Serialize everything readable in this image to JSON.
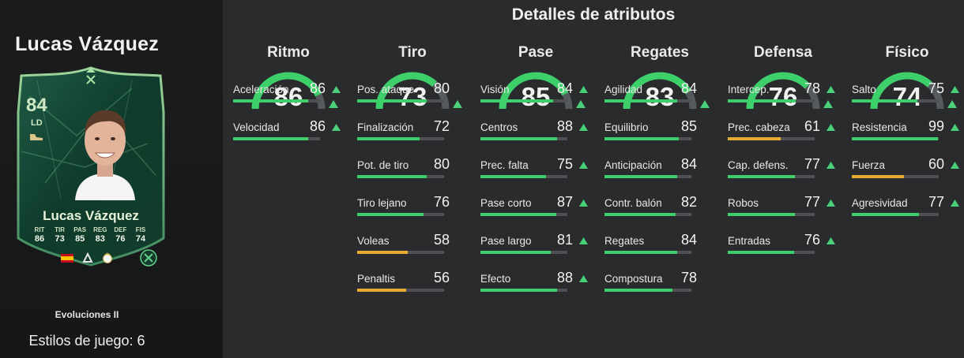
{
  "player": {
    "name": "Lucas Vázquez",
    "card_name": "Lucas Vázquez",
    "rating": "84",
    "position": "LD",
    "card_stats": [
      {
        "label": "RIT",
        "value": "86"
      },
      {
        "label": "TIR",
        "value": "73"
      },
      {
        "label": "PAS",
        "value": "85"
      },
      {
        "label": "REG",
        "value": "83"
      },
      {
        "label": "DEF",
        "value": "76"
      },
      {
        "label": "FIS",
        "value": "74"
      }
    ],
    "card_type": "Evoluciones II",
    "playstyles": "Estilos de juego: 6"
  },
  "title": "Detalles de atributos",
  "colors": {
    "green": "#3ccf6a",
    "yellow": "#e6ad2e",
    "gauge_track": "#575a5d",
    "up_arrow": "#4bd07a"
  },
  "categories": [
    {
      "name": "Ritmo",
      "value": 86,
      "attributes": [
        {
          "name": "Aceleración",
          "value": 86,
          "up": true
        },
        {
          "name": "Velocidad",
          "value": 86,
          "up": true
        }
      ]
    },
    {
      "name": "Tiro",
      "value": 73,
      "attributes": [
        {
          "name": "Pos. ataque",
          "value": 80,
          "up": false
        },
        {
          "name": "Finalización",
          "value": 72,
          "up": false
        },
        {
          "name": "Pot. de tiro",
          "value": 80,
          "up": false
        },
        {
          "name": "Tiro lejano",
          "value": 76,
          "up": false
        },
        {
          "name": "Voleas",
          "value": 58,
          "up": false
        },
        {
          "name": "Penaltis",
          "value": 56,
          "up": false
        }
      ]
    },
    {
      "name": "Pase",
      "value": 85,
      "attributes": [
        {
          "name": "Visión",
          "value": 84,
          "up": true
        },
        {
          "name": "Centros",
          "value": 88,
          "up": true
        },
        {
          "name": "Prec. falta",
          "value": 75,
          "up": true
        },
        {
          "name": "Pase corto",
          "value": 87,
          "up": true
        },
        {
          "name": "Pase largo",
          "value": 81,
          "up": true
        },
        {
          "name": "Efecto",
          "value": 88,
          "up": true
        }
      ]
    },
    {
      "name": "Regates",
      "value": 83,
      "attributes": [
        {
          "name": "Agilidad",
          "value": 84,
          "up": false
        },
        {
          "name": "Equilibrio",
          "value": 85,
          "up": false
        },
        {
          "name": "Anticipación",
          "value": 84,
          "up": false
        },
        {
          "name": "Contr. balón",
          "value": 82,
          "up": false
        },
        {
          "name": "Regates",
          "value": 84,
          "up": false
        },
        {
          "name": "Compostura",
          "value": 78,
          "up": false
        }
      ]
    },
    {
      "name": "Defensa",
      "value": 76,
      "attributes": [
        {
          "name": "Intercep.",
          "value": 78,
          "up": true
        },
        {
          "name": "Prec. cabeza",
          "value": 61,
          "up": true
        },
        {
          "name": "Cap. defens.",
          "value": 77,
          "up": true
        },
        {
          "name": "Robos",
          "value": 77,
          "up": true
        },
        {
          "name": "Entradas",
          "value": 76,
          "up": true
        }
      ]
    },
    {
      "name": "Físico",
      "value": 74,
      "attributes": [
        {
          "name": "Salto",
          "value": 75,
          "up": true
        },
        {
          "name": "Resistencia",
          "value": 99,
          "up": true
        },
        {
          "name": "Fuerza",
          "value": 60,
          "up": true
        },
        {
          "name": "Agresividad",
          "value": 77,
          "up": true
        }
      ]
    }
  ]
}
